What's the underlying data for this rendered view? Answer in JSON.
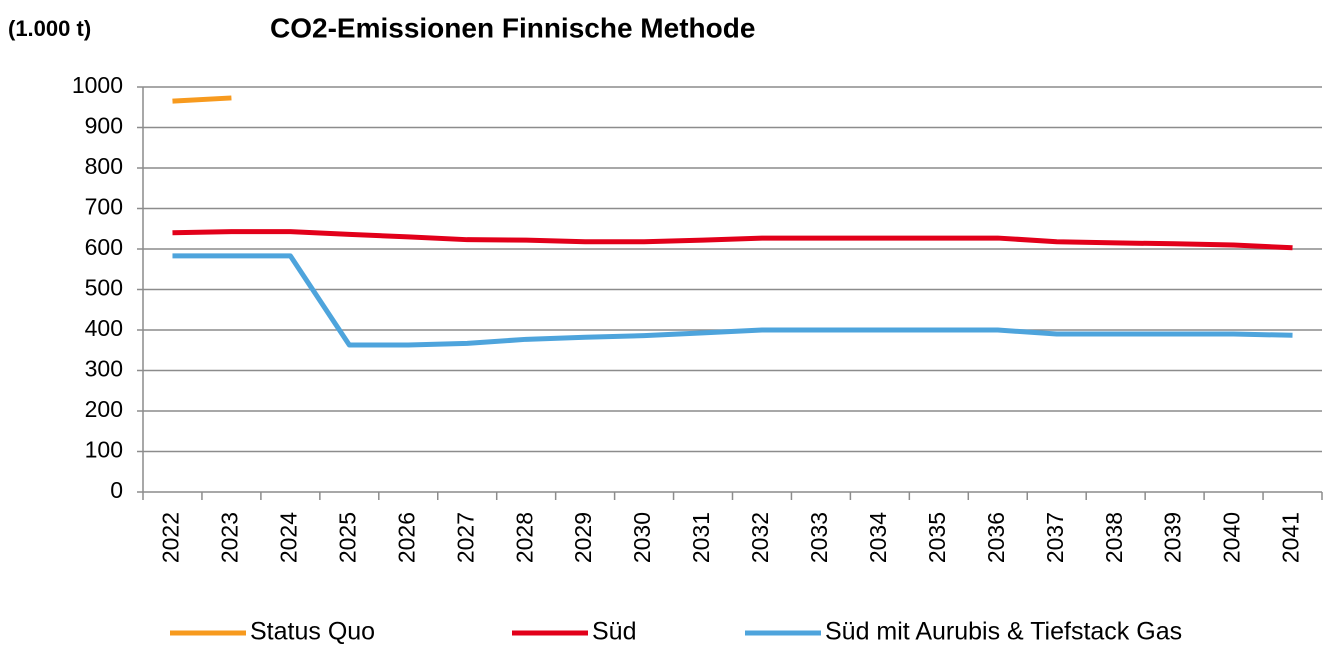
{
  "chart_data": {
    "type": "line",
    "title": "CO2-Emissionen Finnische Methode",
    "y_label": "(1.000 t)",
    "categories": [
      "2022",
      "2023",
      "2024",
      "2025",
      "2026",
      "2027",
      "2028",
      "2029",
      "2030",
      "2031",
      "2032",
      "2033",
      "2034",
      "2035",
      "2036",
      "2037",
      "2038",
      "2039",
      "2040",
      "2041"
    ],
    "series": [
      {
        "name": "Status Quo",
        "color": "#f79a1e",
        "values": [
          965,
          973,
          null,
          null,
          null,
          null,
          null,
          null,
          null,
          null,
          null,
          null,
          null,
          null,
          null,
          null,
          null,
          null,
          null,
          null
        ]
      },
      {
        "name": "Süd",
        "color": "#e2001a",
        "values": [
          640,
          643,
          643,
          636,
          630,
          623,
          622,
          618,
          618,
          622,
          627,
          627,
          627,
          627,
          627,
          618,
          615,
          613,
          610,
          603
        ]
      },
      {
        "name": "Süd mit Aurubis & Tiefstack Gas",
        "color": "#4ea4dc",
        "values": [
          583,
          583,
          583,
          363,
          363,
          367,
          377,
          382,
          386,
          393,
          400,
          400,
          400,
          400,
          400,
          390,
          390,
          390,
          390,
          387
        ]
      }
    ],
    "ylim": [
      0,
      1000
    ],
    "yticks": [
      0,
      100,
      200,
      300,
      400,
      500,
      600,
      700,
      800,
      900,
      1000
    ],
    "grid": true,
    "legend": "bottom"
  }
}
